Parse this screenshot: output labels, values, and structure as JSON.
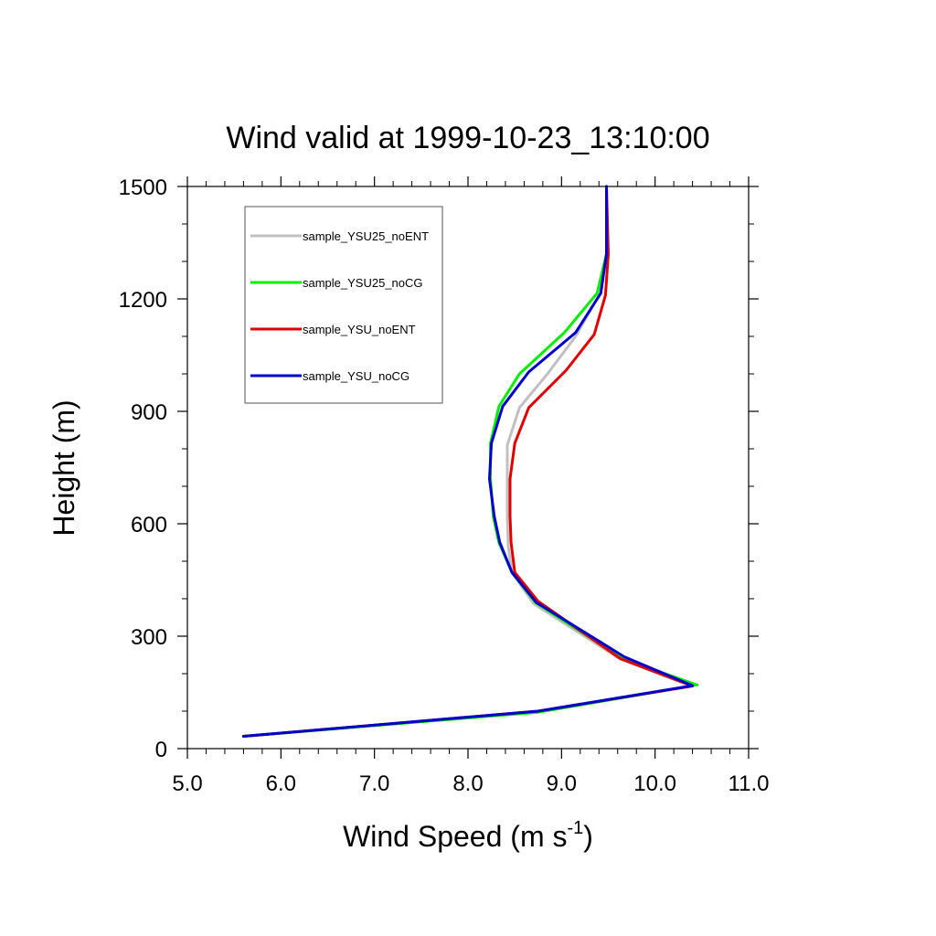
{
  "chart_data": {
    "type": "line",
    "title": "Wind valid at 1999-10-23_13:10:00",
    "xlabel": "Wind Speed (m s",
    "xlabel_superscript": "-1",
    "xlabel_suffix": ")",
    "ylabel": "Height (m)",
    "xlim": [
      5.0,
      11.0
    ],
    "ylim": [
      0,
      1500
    ],
    "x_ticks": [
      5.0,
      6.0,
      7.0,
      8.0,
      9.0,
      10.0,
      11.0
    ],
    "x_tick_labels": [
      "5.0",
      "6.0",
      "7.0",
      "8.0",
      "9.0",
      "10.0",
      "11.0"
    ],
    "y_ticks": [
      0,
      300,
      600,
      900,
      1200,
      1500
    ],
    "y_tick_labels": [
      "0",
      "300",
      "600",
      "900",
      "1200",
      "1500"
    ],
    "grid": false,
    "legend_position": "top-left",
    "series": [
      {
        "name": "sample_YSU25_noENT",
        "color": "#c0c0c0",
        "points": [
          [
            5.6,
            33
          ],
          [
            8.75,
            100
          ],
          [
            10.38,
            167
          ],
          [
            9.62,
            240
          ],
          [
            8.7,
            387
          ],
          [
            8.47,
            470
          ],
          [
            8.43,
            540
          ],
          [
            8.42,
            620
          ],
          [
            8.42,
            720
          ],
          [
            8.42,
            810
          ],
          [
            8.55,
            910
          ],
          [
            8.85,
            1000
          ],
          [
            9.15,
            1100
          ],
          [
            9.4,
            1210
          ],
          [
            9.48,
            1320
          ],
          [
            9.48,
            1500
          ]
        ]
      },
      {
        "name": "sample_YSU25_noCG",
        "color": "#00ee00",
        "points": [
          [
            5.6,
            33
          ],
          [
            8.75,
            97
          ],
          [
            10.45,
            170
          ],
          [
            9.65,
            240
          ],
          [
            8.72,
            390
          ],
          [
            8.47,
            470
          ],
          [
            8.33,
            550
          ],
          [
            8.27,
            620
          ],
          [
            8.24,
            720
          ],
          [
            8.24,
            815
          ],
          [
            8.33,
            913
          ],
          [
            8.55,
            1000
          ],
          [
            9.03,
            1110
          ],
          [
            9.38,
            1215
          ],
          [
            9.48,
            1320
          ],
          [
            9.48,
            1500
          ]
        ]
      },
      {
        "name": "sample_YSU_noENT",
        "color": "#e00000",
        "points": [
          [
            5.6,
            33
          ],
          [
            8.75,
            100
          ],
          [
            10.4,
            167
          ],
          [
            9.63,
            240
          ],
          [
            8.75,
            393
          ],
          [
            8.5,
            470
          ],
          [
            8.46,
            550
          ],
          [
            8.45,
            620
          ],
          [
            8.45,
            720
          ],
          [
            8.5,
            815
          ],
          [
            8.65,
            910
          ],
          [
            9.05,
            1010
          ],
          [
            9.35,
            1105
          ],
          [
            9.47,
            1210
          ],
          [
            9.5,
            1320
          ],
          [
            9.48,
            1500
          ]
        ]
      },
      {
        "name": "sample_YSU_noCG",
        "color": "#0000cc",
        "points": [
          [
            5.6,
            33
          ],
          [
            8.75,
            100
          ],
          [
            10.4,
            168
          ],
          [
            9.67,
            245
          ],
          [
            8.73,
            390
          ],
          [
            8.47,
            470
          ],
          [
            8.34,
            550
          ],
          [
            8.28,
            620
          ],
          [
            8.23,
            720
          ],
          [
            8.25,
            815
          ],
          [
            8.37,
            913
          ],
          [
            8.65,
            1005
          ],
          [
            9.15,
            1110
          ],
          [
            9.42,
            1215
          ],
          [
            9.48,
            1320
          ],
          [
            9.48,
            1500
          ]
        ]
      }
    ]
  }
}
